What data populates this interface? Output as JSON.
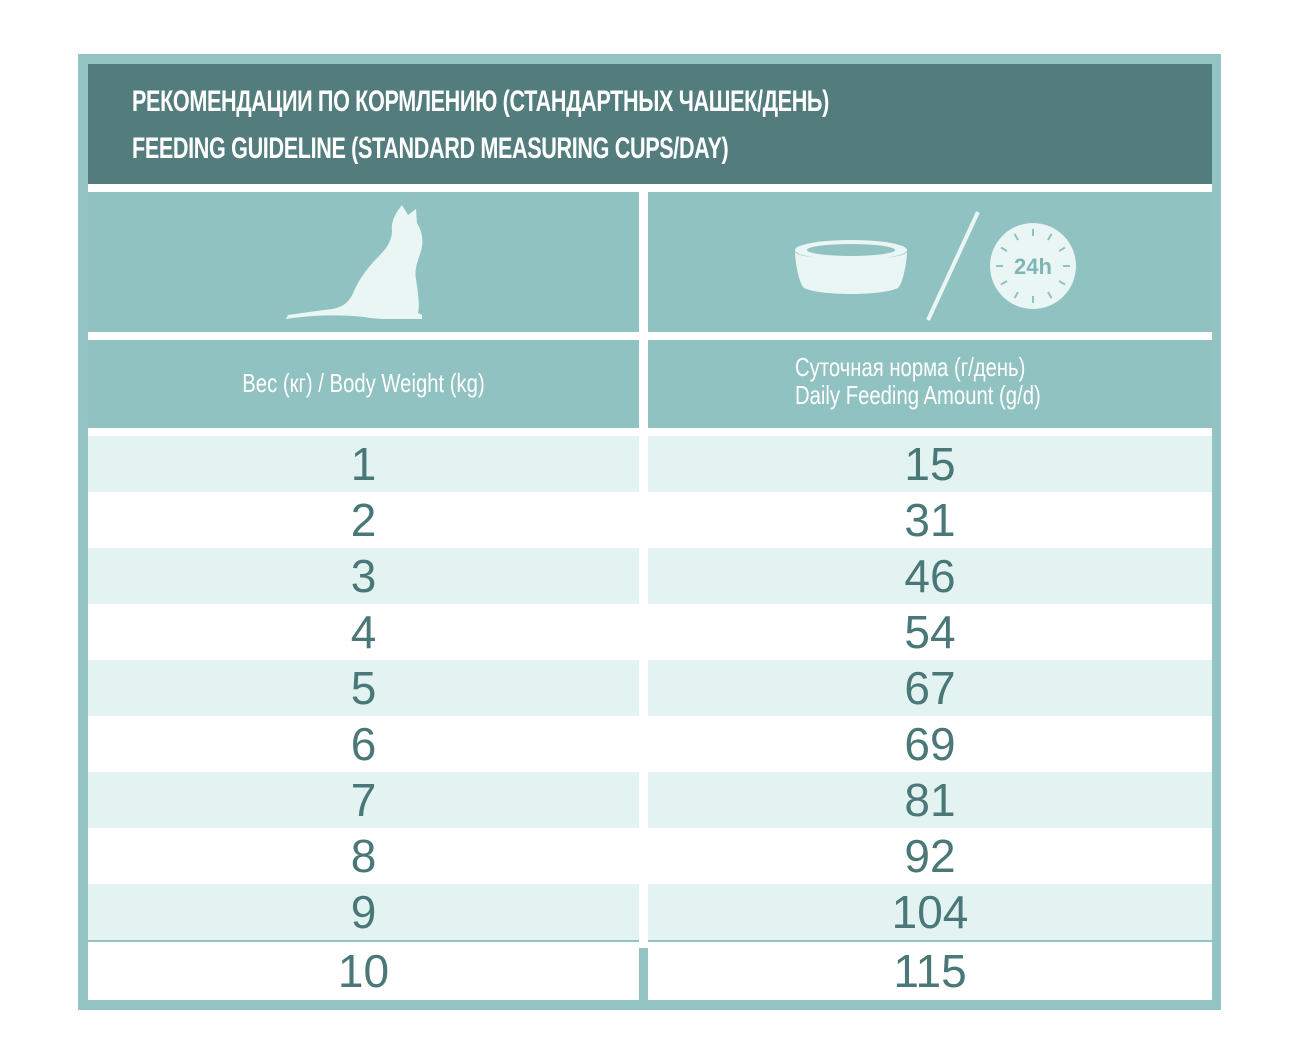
{
  "header": {
    "title_ru": "РЕКОМЕНДАЦИИ ПО КОРМЛЕНИЮ (СТАНДАРТНЫХ ЧАШЕК/ДЕНЬ)",
    "title_en": "FEEDING GUIDELINE (STANDARD MEASURING CUPS/DAY)"
  },
  "icons": {
    "left": "cat-icon",
    "right_bowl": "bowl-icon",
    "right_separator": "slash-divider",
    "right_clock": "clock-24h-icon",
    "clock_label": "24h"
  },
  "columns": {
    "weight_label": "Вес (кг) / Body Weight (kg)",
    "amount_label_ru": "Суточная норма (г/день)",
    "amount_label_en": "Daily Feeding Amount (g/d)"
  },
  "rows": [
    {
      "weight": "1",
      "amount": "15"
    },
    {
      "weight": "2",
      "amount": "31"
    },
    {
      "weight": "3",
      "amount": "46"
    },
    {
      "weight": "4",
      "amount": "54"
    },
    {
      "weight": "5",
      "amount": "67"
    },
    {
      "weight": "6",
      "amount": "69"
    },
    {
      "weight": "7",
      "amount": "81"
    },
    {
      "weight": "8",
      "amount": "92"
    },
    {
      "weight": "9",
      "amount": "104"
    },
    {
      "weight": "10",
      "amount": "115"
    }
  ],
  "colors": {
    "frame": "#94c3c3",
    "title_bar": "#527d7c",
    "row_light": "#e2f3f1",
    "row_white": "#ffffff",
    "number_text": "#4a7777"
  }
}
